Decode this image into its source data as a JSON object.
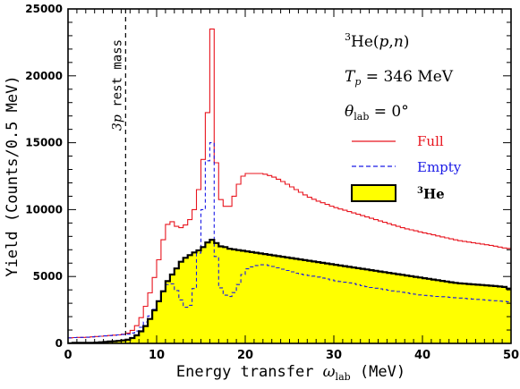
{
  "chart_data": {
    "type": "line",
    "xlabel_main": "Energy transfer ",
    "xlabel_sym": "ω",
    "xlabel_sub": "lab",
    "xlabel_unit": " (MeV)",
    "ylabel": "Yield (Counts/0.5 MeV)",
    "xlim": [
      0,
      50
    ],
    "ylim": [
      0,
      25000
    ],
    "x_ticks": [
      0,
      10,
      20,
      30,
      40,
      50
    ],
    "y_ticks": [
      0,
      5000,
      10000,
      15000,
      20000,
      25000
    ],
    "grid": false,
    "legend_position": "right",
    "annotations": {
      "reaction_sup": "3",
      "reaction_text": "He(",
      "reaction_p": "p",
      "reaction_comma": ",",
      "reaction_n": "n",
      "reaction_close": ")",
      "tp_T": "T",
      "tp_sub": "p",
      "tp_value": " = 346 MeV",
      "theta_sym": "θ",
      "theta_sub": "lab",
      "theta_value": " = 0°",
      "marker_italic": "3p",
      "marker_text": " rest mass",
      "marker_x": 6.5
    },
    "bin_width": 0.5,
    "series": [
      {
        "name": "Full",
        "color": "#e8141e",
        "style": "solid",
        "x": [
          0,
          1,
          2,
          3,
          4,
          5,
          6,
          7,
          8,
          9,
          10,
          10.5,
          11,
          11.5,
          12,
          12.5,
          13,
          13.5,
          14,
          14.5,
          15,
          15.5,
          16,
          16.25,
          16.5,
          16.75,
          17,
          17.5,
          18,
          18.5,
          19,
          19.5,
          20,
          21,
          22,
          23,
          24,
          25,
          26,
          27,
          28,
          30,
          32,
          34,
          36,
          38,
          40,
          42,
          44,
          46,
          48,
          49.5,
          50
        ],
        "y": [
          400,
          450,
          450,
          500,
          550,
          600,
          650,
          800,
          1500,
          3200,
          5500,
          7000,
          8500,
          9300,
          8900,
          8600,
          8700,
          9000,
          9500,
          10500,
          12500,
          15000,
          19500,
          23500,
          19000,
          13500,
          11000,
          10500,
          10000,
          10500,
          11500,
          12300,
          12700,
          12700,
          12700,
          12500,
          12200,
          11800,
          11400,
          11000,
          10700,
          10200,
          9800,
          9400,
          9000,
          8600,
          8300,
          8000,
          7700,
          7500,
          7300,
          7100,
          7100
        ]
      },
      {
        "name": "Empty",
        "color": "#1a1ae6",
        "style": "dashed",
        "x": [
          0,
          1,
          2,
          3,
          4,
          5,
          6,
          7,
          8,
          9,
          10,
          10.5,
          11,
          11.5,
          12,
          12.5,
          13,
          13.5,
          14,
          14.5,
          15,
          15.5,
          16,
          16.25,
          16.5,
          16.75,
          17,
          17.5,
          18,
          18.5,
          19,
          19.5,
          20,
          21,
          22,
          23,
          24,
          25,
          26,
          28,
          30,
          32,
          34,
          36,
          38,
          40,
          42,
          44,
          46,
          48,
          50
        ],
        "y": [
          400,
          450,
          450,
          500,
          550,
          600,
          650,
          700,
          1000,
          1800,
          2800,
          3500,
          4200,
          4600,
          4300,
          3600,
          2900,
          2500,
          3200,
          5000,
          8500,
          11500,
          15800,
          15000,
          10500,
          6500,
          4500,
          3800,
          3400,
          3600,
          4000,
          4800,
          5500,
          5800,
          5900,
          5800,
          5600,
          5400,
          5200,
          5000,
          4700,
          4500,
          4200,
          4000,
          3800,
          3600,
          3500,
          3400,
          3300,
          3200,
          3100
        ]
      },
      {
        "name": "He",
        "name_sup": "3",
        "color": "#000000",
        "fill": "#ffff00",
        "style": "solid",
        "x": [
          0,
          1,
          2,
          3,
          4,
          5,
          6,
          7,
          8,
          9,
          10,
          10.5,
          11,
          11.5,
          12,
          12.5,
          13,
          13.5,
          14,
          14.5,
          15,
          15.5,
          16,
          16.5,
          17,
          17.5,
          18,
          19,
          20,
          21,
          22,
          23,
          24,
          25,
          26,
          28,
          30,
          32,
          34,
          36,
          38,
          40,
          42,
          44,
          46,
          48,
          49.5,
          50
        ],
        "y": [
          0,
          50,
          50,
          50,
          100,
          150,
          200,
          300,
          700,
          1500,
          2800,
          3500,
          4300,
          5000,
          5300,
          5900,
          6300,
          6500,
          6700,
          6900,
          7000,
          7400,
          7700,
          7800,
          7200,
          7300,
          7100,
          7000,
          6900,
          6800,
          6700,
          6600,
          6500,
          6400,
          6300,
          6100,
          5900,
          5700,
          5500,
          5300,
          5100,
          4900,
          4700,
          4500,
          4400,
          4300,
          4200,
          4000
        ]
      }
    ]
  }
}
